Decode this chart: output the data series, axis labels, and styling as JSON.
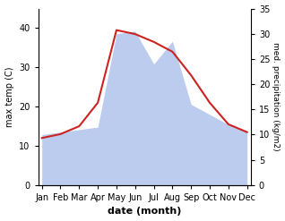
{
  "months": [
    "Jan",
    "Feb",
    "Mar",
    "Apr",
    "May",
    "Jun",
    "Jul",
    "Aug",
    "Sep",
    "Oct",
    "Nov",
    "Dec"
  ],
  "month_positions": [
    0,
    1,
    2,
    3,
    4,
    5,
    6,
    7,
    8,
    9,
    10,
    11
  ],
  "temperature": [
    12.0,
    13.0,
    15.0,
    21.0,
    39.5,
    38.5,
    36.5,
    34.0,
    28.0,
    21.0,
    15.5,
    13.5
  ],
  "precipitation": [
    10.0,
    10.5,
    11.0,
    11.5,
    30.0,
    30.5,
    24.0,
    28.5,
    16.0,
    14.0,
    12.0,
    10.5
  ],
  "temp_color": "#cc2222",
  "precip_color": "#bbccee",
  "temp_ylim": [
    0,
    45
  ],
  "precip_ylim": [
    0,
    35
  ],
  "temp_yticks": [
    0,
    10,
    20,
    30,
    40
  ],
  "precip_yticks": [
    0,
    5,
    10,
    15,
    20,
    25,
    30,
    35
  ],
  "ylabel_left": "max temp (C)",
  "ylabel_right": "med. precipitation (kg/m2)",
  "xlabel": "date (month)",
  "bg_color": "#ffffff"
}
